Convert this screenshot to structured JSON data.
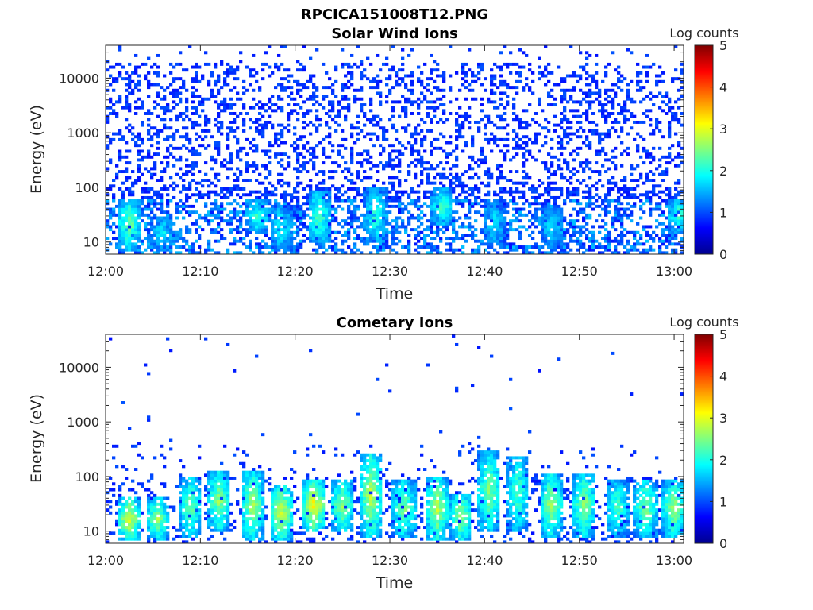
{
  "figure_title": "RPCICA151008T12.PNG",
  "chart_data": [
    {
      "type": "heatmap",
      "title": "Solar Wind Ions",
      "xlabel": "Time",
      "ylabel": "Energy (eV)",
      "x_ticks": [
        "12:00",
        "12:10",
        "12:20",
        "12:30",
        "12:40",
        "12:50",
        "13:00"
      ],
      "x_range": [
        "12:00",
        "13:01"
      ],
      "y_scale": "log",
      "y_range": [
        6,
        40000
      ],
      "y_ticks": [
        "10",
        "100",
        "1000",
        "10000"
      ],
      "colorbar": {
        "label": "Log counts",
        "range": [
          0,
          5
        ],
        "ticks": [
          "0",
          "1",
          "2",
          "3",
          "4",
          "5"
        ],
        "colormap": "jet"
      },
      "description_of_data": "scattered low-count events across all energies; enhanced bursts below ~100 eV",
      "bursts": [
        {
          "time": "12:02.5",
          "emin": 7,
          "emax": 60,
          "level": 2.2
        },
        {
          "time": "12:06",
          "emin": 7,
          "emax": 30,
          "level": 1.5
        },
        {
          "time": "12:16",
          "emin": 15,
          "emax": 60,
          "level": 1.8
        },
        {
          "time": "12:18.5",
          "emin": 7,
          "emax": 50,
          "level": 1.6
        },
        {
          "time": "12:22.5",
          "emin": 10,
          "emax": 90,
          "level": 2.0
        },
        {
          "time": "12:28.5",
          "emin": 10,
          "emax": 100,
          "level": 1.8
        },
        {
          "time": "12:35.5",
          "emin": 20,
          "emax": 100,
          "level": 1.9
        },
        {
          "time": "12:41",
          "emin": 8,
          "emax": 60,
          "level": 1.4
        },
        {
          "time": "12:47",
          "emin": 8,
          "emax": 50,
          "level": 1.4
        },
        {
          "time": "13:00.5",
          "emin": 15,
          "emax": 60,
          "level": 1.9
        }
      ]
    },
    {
      "type": "heatmap",
      "title": "Cometary Ions",
      "xlabel": "Time",
      "ylabel": "Energy (eV)",
      "x_ticks": [
        "12:00",
        "12:10",
        "12:20",
        "12:30",
        "12:40",
        "12:50",
        "13:00"
      ],
      "x_range": [
        "12:00",
        "13:01"
      ],
      "y_scale": "log",
      "y_range": [
        6,
        40000
      ],
      "y_ticks": [
        "10",
        "100",
        "1000",
        "10000"
      ],
      "colorbar": {
        "label": "Log counts",
        "range": [
          0,
          5
        ],
        "ticks": [
          "0",
          "1",
          "2",
          "3",
          "4",
          "5"
        ],
        "colormap": "jet"
      },
      "description_of_data": "periodic cometary ion bursts between ~7 and ~300 eV; sparse isolated counts above 1 keV",
      "bursts": [
        {
          "time": "12:02.5",
          "emin": 7,
          "emax": 40,
          "level": 2.8
        },
        {
          "time": "12:05.5",
          "emin": 7,
          "emax": 40,
          "level": 2.4
        },
        {
          "time": "12:09",
          "emin": 8,
          "emax": 100,
          "level": 2.2
        },
        {
          "time": "12:12",
          "emin": 10,
          "emax": 130,
          "level": 2.4
        },
        {
          "time": "12:15.5",
          "emin": 7,
          "emax": 130,
          "level": 2.5
        },
        {
          "time": "12:18.5",
          "emin": 7,
          "emax": 70,
          "level": 2.8
        },
        {
          "time": "12:22",
          "emin": 10,
          "emax": 90,
          "level": 3.0
        },
        {
          "time": "12:25",
          "emin": 10,
          "emax": 90,
          "level": 2.4
        },
        {
          "time": "12:28",
          "emin": 8,
          "emax": 280,
          "level": 2.6
        },
        {
          "time": "12:31.5",
          "emin": 8,
          "emax": 90,
          "level": 2.3
        },
        {
          "time": "12:35",
          "emin": 7,
          "emax": 100,
          "level": 2.6
        },
        {
          "time": "12:37.5",
          "emin": 7,
          "emax": 50,
          "level": 2.5
        },
        {
          "time": "12:40.5",
          "emin": 10,
          "emax": 300,
          "level": 2.3
        },
        {
          "time": "12:43.5",
          "emin": 10,
          "emax": 250,
          "level": 2.0
        },
        {
          "time": "12:47",
          "emin": 8,
          "emax": 120,
          "level": 2.4
        },
        {
          "time": "12:50.5",
          "emin": 8,
          "emax": 120,
          "level": 2.4
        },
        {
          "time": "12:54",
          "emin": 8,
          "emax": 90,
          "level": 2.0
        },
        {
          "time": "12:57",
          "emin": 8,
          "emax": 90,
          "level": 2.3
        },
        {
          "time": "13:00",
          "emin": 8,
          "emax": 90,
          "level": 2.5
        }
      ]
    }
  ]
}
